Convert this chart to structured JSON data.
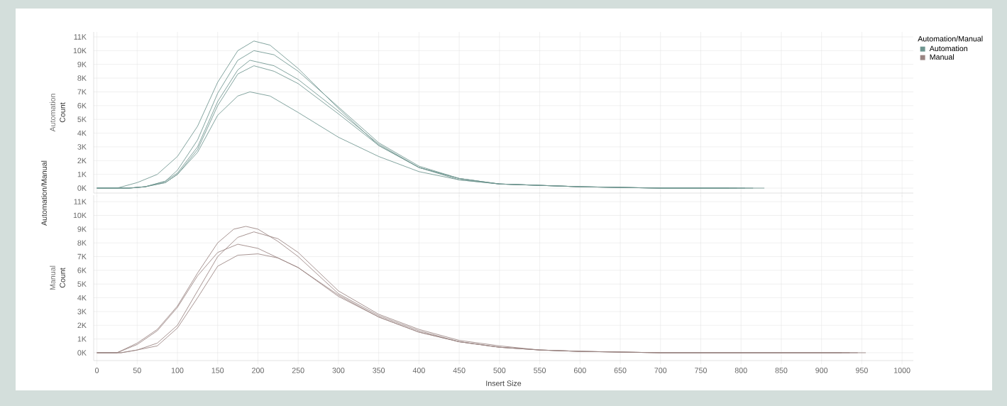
{
  "chart_data": [
    {
      "type": "line",
      "ylabel": "Count",
      "annotations": [
        "Automation/Manual",
        "Automation"
      ],
      "legend_title": "Automation/Manual",
      "legend": "right",
      "grid": true,
      "marker": "none",
      "line_style": "solid",
      "tick_labels": "y",
      "xlim": [
        -4,
        1014
      ],
      "ylim": [
        -360,
        11360
      ],
      "xticks": [
        0,
        50,
        100,
        150,
        200,
        250,
        300,
        350,
        400,
        450,
        500,
        550,
        600,
        650,
        700,
        750,
        800,
        850,
        900,
        950,
        1000
      ],
      "yticks": [
        {
          "value": 0,
          "label": "0K"
        },
        {
          "value": 1000,
          "label": "1K"
        },
        {
          "value": 2000,
          "label": "2K"
        },
        {
          "value": 3000,
          "label": "3K"
        },
        {
          "value": 4000,
          "label": "4K"
        },
        {
          "value": 5000,
          "label": "5K"
        },
        {
          "value": 6000,
          "label": "6K"
        },
        {
          "value": 7000,
          "label": "7K"
        },
        {
          "value": 8000,
          "label": "8K"
        },
        {
          "value": 9000,
          "label": "9K"
        },
        {
          "value": 10000,
          "label": "10K"
        },
        {
          "value": 11000,
          "label": "11K"
        }
      ],
      "series": [
        {
          "name": "Automation",
          "color": "#6f9690",
          "x": [
            0,
            25,
            50,
            75,
            100,
            125,
            150,
            175,
            195,
            215,
            250,
            300,
            350,
            400,
            450,
            500,
            550,
            600,
            700,
            829
          ],
          "values": [
            0,
            0,
            400,
            1000,
            2300,
            4500,
            7700,
            10000,
            10700,
            10400,
            8700,
            5800,
            3100,
            1500,
            700,
            300,
            200,
            100,
            0,
            0
          ]
        },
        {
          "color": "#6f9690",
          "x": [
            0,
            40,
            60,
            85,
            100,
            125,
            150,
            175,
            195,
            220,
            250,
            300,
            350,
            400,
            450,
            500,
            600,
            700,
            815
          ],
          "values": [
            0,
            0,
            100,
            500,
            1300,
            3500,
            6900,
            9300,
            10000,
            9700,
            8500,
            5900,
            3300,
            1600,
            700,
            300,
            100,
            0,
            0
          ]
        },
        {
          "color": "#6f9690",
          "x": [
            0,
            40,
            60,
            85,
            100,
            125,
            150,
            175,
            190,
            220,
            250,
            300,
            350,
            400,
            450,
            500,
            600,
            700,
            805
          ],
          "values": [
            0,
            0,
            100,
            500,
            1100,
            3000,
            6300,
            8600,
            9300,
            8900,
            7900,
            5600,
            3200,
            1500,
            700,
            300,
            100,
            0,
            0
          ]
        },
        {
          "color": "#6f9690",
          "x": [
            0,
            40,
            60,
            85,
            100,
            125,
            150,
            175,
            195,
            220,
            250,
            300,
            350,
            400,
            450,
            500,
            600,
            700,
            795
          ],
          "values": [
            0,
            0,
            100,
            400,
            1000,
            2800,
            6000,
            8300,
            8900,
            8500,
            7600,
            5400,
            3100,
            1500,
            600,
            300,
            100,
            0,
            0
          ]
        },
        {
          "color": "#6f9690",
          "x": [
            0,
            40,
            60,
            85,
            100,
            125,
            150,
            175,
            190,
            215,
            250,
            300,
            350,
            400,
            450,
            500,
            600,
            700,
            785
          ],
          "values": [
            0,
            0,
            100,
            400,
            1000,
            2600,
            5300,
            6700,
            7000,
            6700,
            5500,
            3700,
            2300,
            1200,
            600,
            300,
            100,
            0,
            0
          ]
        }
      ]
    },
    {
      "type": "line",
      "xlabel": "Insert Size",
      "ylabel": "Count",
      "annotations": [
        "Manual"
      ],
      "legend": "right",
      "grid": true,
      "marker": "none",
      "line_style": "solid",
      "xlim": [
        -4,
        1014
      ],
      "ylim": [
        -570,
        11470
      ],
      "xticks": [
        0,
        50,
        100,
        150,
        200,
        250,
        300,
        350,
        400,
        450,
        500,
        550,
        600,
        650,
        700,
        750,
        800,
        850,
        900,
        950,
        1000
      ],
      "yticks": [
        {
          "value": 0,
          "label": "0K"
        },
        {
          "value": 1000,
          "label": "1K"
        },
        {
          "value": 2000,
          "label": "2K"
        },
        {
          "value": 3000,
          "label": "3K"
        },
        {
          "value": 4000,
          "label": "4K"
        },
        {
          "value": 5000,
          "label": "5K"
        },
        {
          "value": 6000,
          "label": "6K"
        },
        {
          "value": 7000,
          "label": "7K"
        },
        {
          "value": 8000,
          "label": "8K"
        },
        {
          "value": 9000,
          "label": "9K"
        },
        {
          "value": 10000,
          "label": "10K"
        },
        {
          "value": 11000,
          "label": "11K"
        }
      ],
      "series": [
        {
          "name": "Manual",
          "color": "#9a8482",
          "x": [
            0,
            25,
            50,
            75,
            100,
            125,
            150,
            170,
            185,
            200,
            225,
            250,
            300,
            350,
            400,
            450,
            500,
            550,
            600,
            700,
            800,
            955
          ],
          "values": [
            0,
            0,
            700,
            1700,
            3400,
            5800,
            8000,
            9000,
            9200,
            9000,
            8100,
            7000,
            4300,
            2700,
            1600,
            800,
            400,
            200,
            100,
            0,
            0,
            0
          ]
        },
        {
          "color": "#9a8482",
          "x": [
            0,
            30,
            50,
            75,
            100,
            125,
            150,
            175,
            195,
            225,
            250,
            300,
            350,
            400,
            450,
            500,
            550,
            600,
            700,
            800,
            945
          ],
          "values": [
            0,
            0,
            200,
            700,
            2000,
            4500,
            7000,
            8400,
            8800,
            8300,
            7300,
            4500,
            2800,
            1700,
            900,
            500,
            200,
            100,
            0,
            0,
            0
          ]
        },
        {
          "color": "#9a8482",
          "x": [
            0,
            25,
            50,
            75,
            100,
            125,
            150,
            175,
            200,
            250,
            300,
            350,
            400,
            450,
            500,
            550,
            600,
            700,
            800,
            935
          ],
          "values": [
            0,
            0,
            600,
            1600,
            3300,
            5600,
            7300,
            7900,
            7600,
            6200,
            4100,
            2600,
            1500,
            800,
            400,
            200,
            100,
            0,
            0,
            0
          ]
        },
        {
          "color": "#9a8482",
          "x": [
            0,
            30,
            50,
            75,
            100,
            125,
            150,
            175,
            200,
            225,
            250,
            300,
            350,
            400,
            450,
            500,
            550,
            600,
            700,
            800,
            925
          ],
          "values": [
            0,
            0,
            200,
            500,
            1800,
            4000,
            6300,
            7100,
            7200,
            6900,
            6200,
            4200,
            2600,
            1500,
            800,
            400,
            200,
            100,
            0,
            0,
            0
          ]
        }
      ]
    }
  ]
}
